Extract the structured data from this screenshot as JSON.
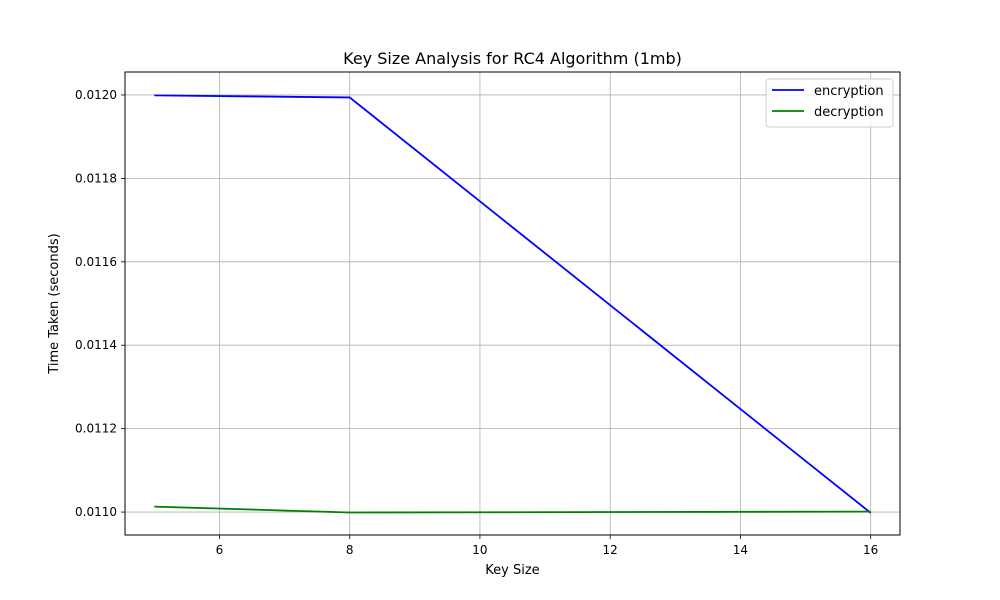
{
  "chart_data": {
    "type": "line",
    "title": "Key Size Analysis for RC4 Algorithm (1mb)",
    "xlabel": "Key Size",
    "ylabel": "Time Taken (seconds)",
    "xlim": [
      4.55,
      16.45
    ],
    "ylim": [
      0.010945,
      0.012055
    ],
    "xticks": [
      6,
      8,
      10,
      12,
      14,
      16
    ],
    "yticks": [
      0.011,
      0.0112,
      0.0114,
      0.0116,
      0.0118,
      0.012
    ],
    "ytick_labels": [
      "0.0110",
      "0.0112",
      "0.0114",
      "0.0116",
      "0.0118",
      "0.0120"
    ],
    "grid": true,
    "legend_position": "top-right",
    "series": [
      {
        "name": "encryption",
        "color": "#0000ff",
        "x": [
          5,
          8,
          16
        ],
        "y": [
          0.011999,
          0.011994,
          0.010998
        ]
      },
      {
        "name": "decryption",
        "color": "#008000",
        "x": [
          5,
          8,
          16
        ],
        "y": [
          0.011013,
          0.010999,
          0.011001
        ]
      }
    ]
  }
}
